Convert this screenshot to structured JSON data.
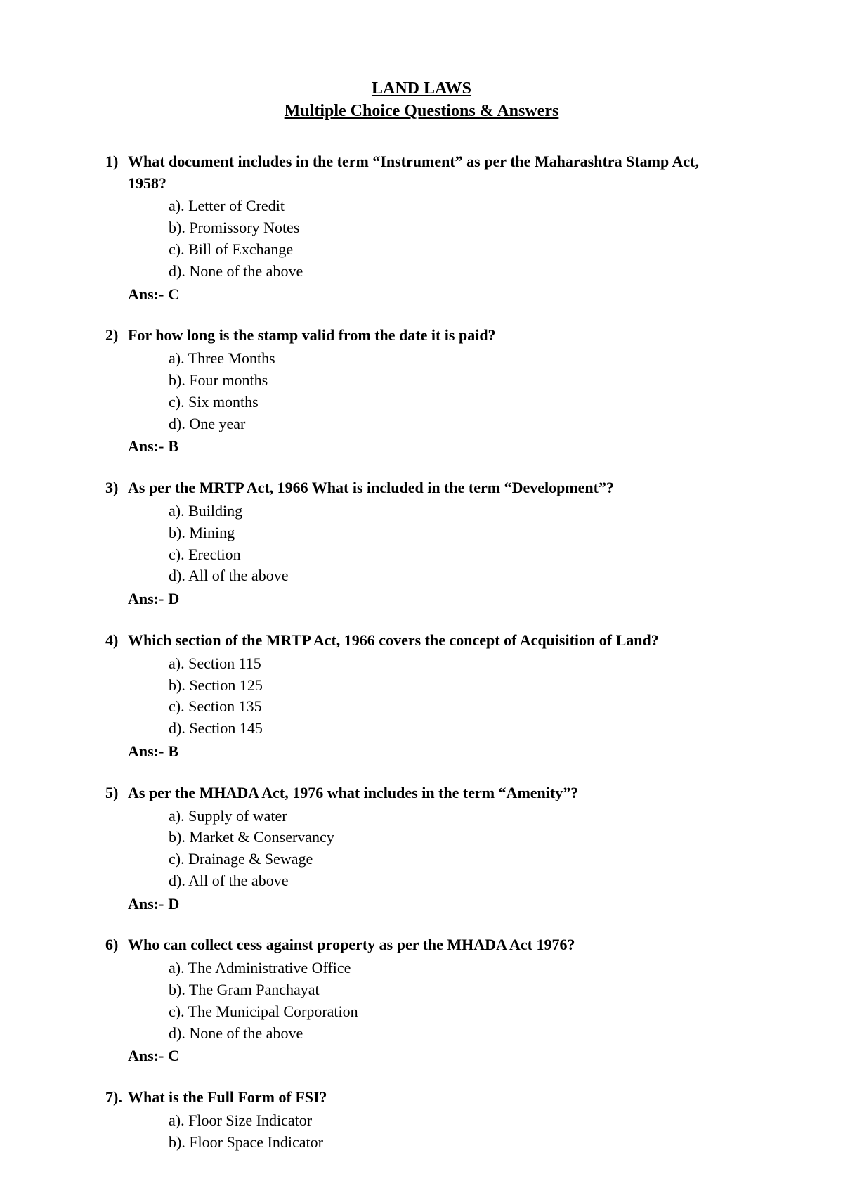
{
  "header": {
    "title": "LAND LAWS",
    "subtitle": "Multiple Choice Questions & Answers"
  },
  "labels": {
    "answer_prefix": "Ans:-"
  },
  "questions": [
    {
      "num": "1)",
      "text": "What document includes in the term “Instrument” as per the Maharashtra Stamp Act, 1958?",
      "options": [
        "a). Letter of Credit",
        "b). Promissory Notes",
        "c). Bill of Exchange",
        "d). None of the above"
      ],
      "answer": "C"
    },
    {
      "num": "2)",
      "text": "For how long is the stamp valid from the date it is paid?",
      "options": [
        "a). Three Months",
        "b). Four months",
        "c). Six months",
        "d). One year"
      ],
      "answer": "B"
    },
    {
      "num": "3)",
      "text": "As per the MRTP Act, 1966 What is included in the term “Development”?",
      "options": [
        "a). Building",
        "b). Mining",
        "c). Erection",
        "d). All of the above"
      ],
      "answer": "D"
    },
    {
      "num": "4)",
      "text": "Which section of the MRTP Act, 1966 covers the concept of Acquisition of Land?",
      "options": [
        "a). Section 115",
        "b). Section 125",
        "c). Section 135",
        "d). Section 145"
      ],
      "answer": "B"
    },
    {
      "num": "5)",
      "text": "As per the MHADA Act, 1976 what includes in the term “Amenity”?",
      "options": [
        "a). Supply of water",
        "b). Market & Conservancy",
        "c). Drainage & Sewage",
        "d). All of the above"
      ],
      "answer": "D"
    },
    {
      "num": "6)",
      "text": "Who can collect cess against property as per the MHADA Act 1976?",
      "options": [
        "a). The Administrative Office",
        "b). The Gram Panchayat",
        "c). The Municipal Corporation",
        "d). None of the above"
      ],
      "answer": "C"
    },
    {
      "num": "7).",
      "text": "What is the Full Form of FSI?",
      "options": [
        "a). Floor Size Indicator",
        "b). Floor Space Indicator"
      ],
      "answer": null
    }
  ]
}
